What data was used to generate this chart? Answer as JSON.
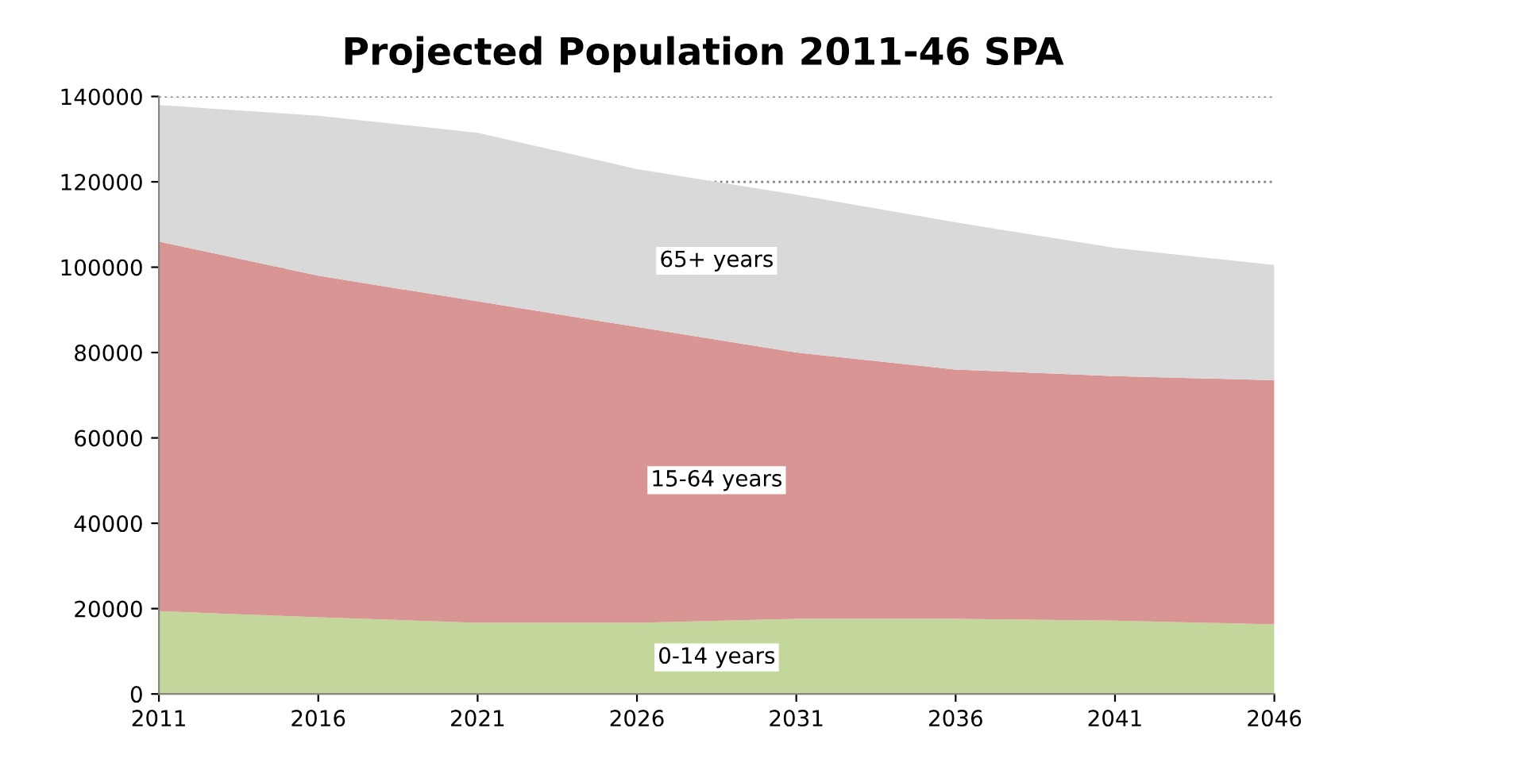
{
  "chart_data": {
    "type": "area",
    "title": "Projected Population 2011-46 SPA",
    "stacked": true,
    "categories": [
      "2011",
      "2016",
      "2021",
      "2026",
      "2031",
      "2036",
      "2041",
      "2046"
    ],
    "series": [
      {
        "name": "0-14 years",
        "color": "#c3d69b",
        "values": [
          19400,
          18000,
          16700,
          16700,
          17600,
          17600,
          17200,
          16300
        ]
      },
      {
        "name": "15-64 years",
        "color": "#d99594",
        "values": [
          86600,
          80000,
          75300,
          69300,
          62400,
          58400,
          57300,
          57200
        ]
      },
      {
        "name": "65+ years",
        "color": "#d9d9d9",
        "values": [
          32000,
          37500,
          39500,
          37000,
          37000,
          34500,
          30000,
          27000
        ]
      }
    ],
    "ylim": [
      0,
      140000
    ],
    "yticks": [
      0,
      20000,
      40000,
      60000,
      80000,
      100000,
      120000,
      140000
    ],
    "grid": "y",
    "legend": false
  }
}
